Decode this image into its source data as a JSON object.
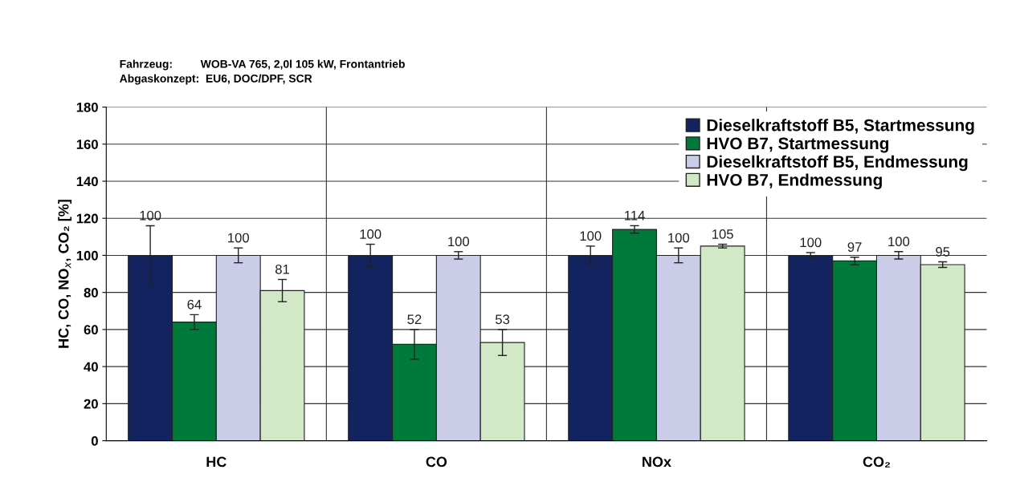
{
  "chart_data": {
    "type": "bar",
    "subtitle": "Fahrzeug:         WOB-VA 765, 2,0l 105 kW, Frontantrieb\nAbgaskonzept:  EU6, DOC/DPF, SCR",
    "ylabel": "HC, CO, NO$_{x}$, CO₂ [%]",
    "categories": [
      "HC",
      "CO",
      "NOx",
      "CO₂"
    ],
    "series": [
      {
        "name": "Dieselkraftstoff B5, Startmessung",
        "color": "#13235f",
        "values": [
          100,
          100,
          100,
          100
        ],
        "errors": [
          16,
          6,
          5,
          1.5
        ]
      },
      {
        "name": "HVO B7, Startmessung",
        "color": "#007a3a",
        "values": [
          64,
          52,
          114,
          97
        ],
        "errors": [
          4,
          8,
          2,
          2
        ]
      },
      {
        "name": "Dieselkraftstoff B5, Endmessung",
        "color": "#cbcce8",
        "values": [
          100,
          100,
          100,
          100
        ],
        "errors": [
          4,
          2,
          4,
          2
        ]
      },
      {
        "name": "HVO B7, Endmessung",
        "color": "#d2e9c8",
        "values": [
          81,
          53,
          105,
          95
        ],
        "errors": [
          6,
          7,
          1,
          1.5
        ]
      }
    ],
    "ylim": [
      0,
      180
    ],
    "yticks": [
      0,
      20,
      40,
      60,
      80,
      100,
      120,
      140,
      160,
      180
    ],
    "grid": true,
    "legend": "top right",
    "data_labels": true
  }
}
